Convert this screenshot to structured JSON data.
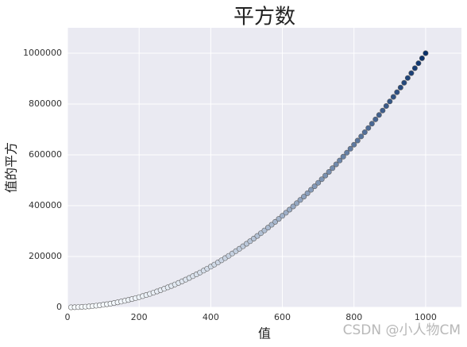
{
  "chart_data": {
    "type": "scatter",
    "title": "平方数",
    "x_label": "值",
    "y_label": "值的平方",
    "x": [
      10,
      20,
      30,
      40,
      50,
      60,
      70,
      80,
      90,
      100,
      110,
      120,
      130,
      140,
      150,
      160,
      170,
      180,
      190,
      200,
      210,
      220,
      230,
      240,
      250,
      260,
      270,
      280,
      290,
      300,
      310,
      320,
      330,
      340,
      350,
      360,
      370,
      380,
      390,
      400,
      410,
      420,
      430,
      440,
      450,
      460,
      470,
      480,
      490,
      500,
      510,
      520,
      530,
      540,
      550,
      560,
      570,
      580,
      590,
      600,
      610,
      620,
      630,
      640,
      650,
      660,
      670,
      680,
      690,
      700,
      710,
      720,
      730,
      740,
      750,
      760,
      770,
      780,
      790,
      800,
      810,
      820,
      830,
      840,
      850,
      860,
      870,
      880,
      890,
      900,
      910,
      920,
      930,
      940,
      950,
      960,
      970,
      980,
      990,
      1000
    ],
    "values": [
      100,
      400,
      900,
      1600,
      2500,
      3600,
      4900,
      6400,
      8100,
      10000,
      12100,
      14400,
      16900,
      19600,
      22500,
      25600,
      28900,
      32400,
      36100,
      40000,
      44100,
      48400,
      52900,
      57600,
      62500,
      67600,
      72900,
      78400,
      84100,
      90000,
      96100,
      102400,
      108900,
      115600,
      122500,
      129600,
      136900,
      144400,
      152100,
      160000,
      168100,
      176400,
      184900,
      193600,
      202500,
      211600,
      220900,
      230400,
      240100,
      250000,
      260100,
      270400,
      280900,
      291600,
      302500,
      313600,
      324900,
      336400,
      348100,
      360000,
      372100,
      384400,
      396900,
      409600,
      422500,
      435600,
      448900,
      462400,
      476100,
      490000,
      504100,
      518400,
      532900,
      547600,
      562500,
      577600,
      592900,
      608400,
      624100,
      640000,
      656100,
      672400,
      688900,
      705600,
      722500,
      739600,
      756900,
      774400,
      792100,
      810000,
      828100,
      846400,
      864900,
      883600,
      902500,
      921600,
      940900,
      960400,
      980100,
      1000000
    ],
    "colormap": [
      "#f7fbff",
      "#08306b"
    ],
    "edgecolor": "#5f5f5f",
    "xlim": [
      0,
      1100
    ],
    "ylim": [
      0,
      1100000
    ],
    "xticks": [
      0,
      200,
      400,
      600,
      800,
      1000
    ],
    "yticks": [
      0,
      200000,
      400000,
      600000,
      800000,
      1000000
    ],
    "grid": true
  },
  "watermark": "CSDN @小人物CM"
}
